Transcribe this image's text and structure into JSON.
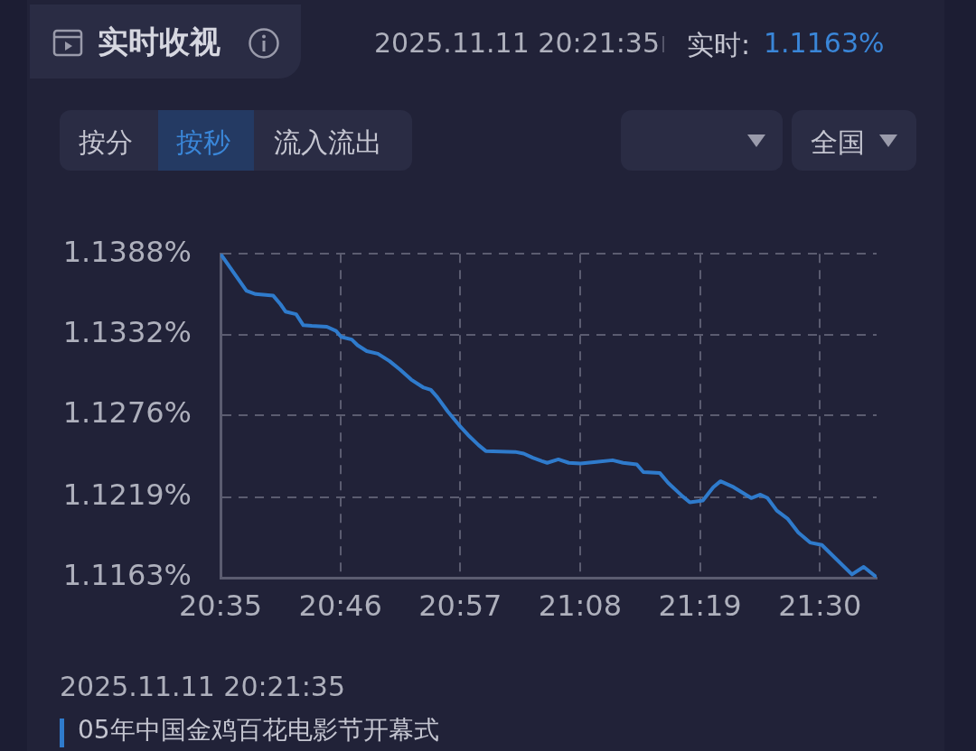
{
  "chart_data": {
    "type": "line",
    "title": "实时收视",
    "annotations": [
      "2025.11.11 20:21:35",
      "实时:",
      "1.1163%",
      "按分",
      "按秒",
      "流入流出",
      "全国",
      "2025.11.11 20:21:35",
      "05年中国金鸡百花电影节开幕式"
    ],
    "x": [
      20.58333,
      20.623,
      20.637,
      20.664,
      20.675,
      20.683,
      20.699,
      20.71,
      20.723,
      20.746,
      20.76,
      20.768,
      20.784,
      20.793,
      20.807,
      20.824,
      20.842,
      20.858,
      20.875,
      20.893,
      20.905,
      20.915,
      20.931,
      20.948,
      20.962,
      20.978,
      20.989,
      21.034,
      21.047,
      21.061,
      21.075,
      21.083,
      21.1,
      21.116,
      21.134,
      21.158,
      21.183,
      21.199,
      21.22,
      21.23,
      21.255,
      21.268,
      21.29,
      21.301,
      21.321,
      21.337,
      21.348,
      21.368,
      21.395,
      21.409,
      21.42,
      21.434,
      21.451,
      21.467,
      21.485,
      21.503,
      21.528,
      21.549,
      21.567,
      21.586
    ],
    "series": [
      {
        "color": "#2f7bcc",
        "values": [
          1.1388,
          1.13623,
          1.136,
          1.13589,
          1.1353,
          1.13478,
          1.1346,
          1.13384,
          1.13379,
          1.13373,
          1.13344,
          1.13303,
          1.13285,
          1.13245,
          1.13204,
          1.13186,
          1.13134,
          1.13075,
          1.13006,
          1.12953,
          1.12935,
          1.12883,
          1.12784,
          1.12691,
          1.12621,
          1.12551,
          1.1251,
          1.12504,
          1.12492,
          1.12463,
          1.1244,
          1.12428,
          1.12452,
          1.12428,
          1.12423,
          1.12434,
          1.12446,
          1.12428,
          1.12417,
          1.12364,
          1.12358,
          1.12288,
          1.12195,
          1.12154,
          1.12166,
          1.12259,
          1.123,
          1.12259,
          1.12183,
          1.12207,
          1.12183,
          1.12096,
          1.12038,
          1.11944,
          1.11874,
          1.11857,
          1.11746,
          1.11653,
          1.11705,
          1.11636
        ]
      }
    ],
    "xlim": [
      20.58333,
      21.5867
    ],
    "xticks": [
      {
        "value": 20.58333,
        "label": "20:35"
      },
      {
        "value": 20.76667,
        "label": "20:46"
      },
      {
        "value": 20.95,
        "label": "20:57"
      },
      {
        "value": 21.13333,
        "label": "21:08"
      },
      {
        "value": 21.31667,
        "label": "21:19"
      },
      {
        "value": 21.5,
        "label": "21:30"
      }
    ],
    "ylim": [
      1.1163,
      1.1388
    ],
    "yticks": [
      {
        "value": 1.1163,
        "label": "1.1163%"
      },
      {
        "value": 1.1219,
        "label": "1.1219%"
      },
      {
        "value": 1.1276,
        "label": "1.1276%"
      },
      {
        "value": 1.1332,
        "label": "1.1332%"
      },
      {
        "value": 1.1388,
        "label": "1.1388%"
      }
    ],
    "grid": true,
    "legend": false,
    "marker": "none",
    "line_style": "solid"
  }
}
